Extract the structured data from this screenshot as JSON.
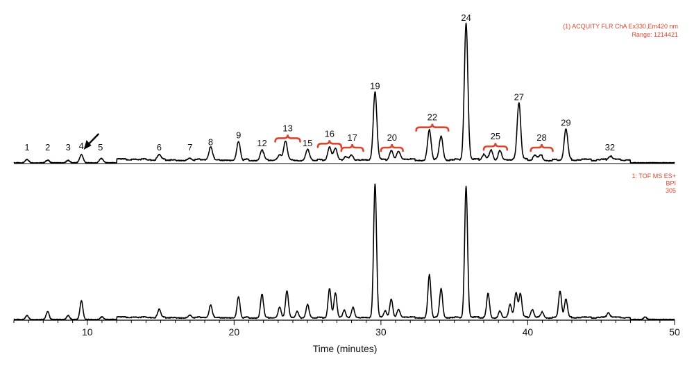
{
  "chart_data": {
    "type": "line",
    "xlabel": "Time (minutes)",
    "xlim": [
      5,
      50
    ],
    "x_ticks": [
      10,
      20,
      30,
      40,
      50
    ],
    "accent_color": "#d9452f",
    "trace_color": "#000000",
    "top_trace": {
      "annotation": [
        "(1) ACQUITY FLR ChA Ex330,Em420 nm",
        "Range: 1214421"
      ],
      "baseline": 0.03,
      "peaks": [
        {
          "label": "1",
          "x": 5.9,
          "y": 0.025
        },
        {
          "label": "2",
          "x": 7.3,
          "y": 0.02
        },
        {
          "label": "3",
          "x": 8.7,
          "y": 0.018
        },
        {
          "label": "4",
          "x": 9.6,
          "y": 0.06
        },
        {
          "label": "5",
          "x": 10.9,
          "y": 0.015
        },
        {
          "label": "6",
          "x": 14.9,
          "y": 0.035
        },
        {
          "label": "7",
          "x": 17.0,
          "y": 0.015
        },
        {
          "label": "8",
          "x": 18.4,
          "y": 0.09
        },
        {
          "label": "9",
          "x": 20.3,
          "y": 0.14
        },
        {
          "label": "12",
          "x": 21.9,
          "y": 0.08
        },
        {
          "label": "13",
          "x": 23.5,
          "y": 0.14
        },
        {
          "label": "15",
          "x": 25.0,
          "y": 0.08
        },
        {
          "label": "16",
          "x": 26.5,
          "y": 0.1
        },
        {
          "label": "17",
          "x": 28.0,
          "y": 0.04
        },
        {
          "label": "19",
          "x": 29.6,
          "y": 0.5
        },
        {
          "label": "20",
          "x": 30.7,
          "y": 0.07
        },
        {
          "label": "22",
          "x": 33.3,
          "y": 0.22
        },
        {
          "label": "24",
          "x": 35.8,
          "y": 1.0
        },
        {
          "label": "25",
          "x": 37.5,
          "y": 0.08
        },
        {
          "label": "27",
          "x": 39.4,
          "y": 0.42
        },
        {
          "label": "28",
          "x": 40.9,
          "y": 0.03
        },
        {
          "label": "29",
          "x": 42.6,
          "y": 0.23
        },
        {
          "label": "32",
          "x": 45.6,
          "y": 0.03
        }
      ],
      "extra_peaks": [
        [
          11.0,
          0.02
        ],
        [
          23.1,
          0.04
        ],
        [
          26.9,
          0.08
        ],
        [
          27.6,
          0.03
        ],
        [
          31.2,
          0.06
        ],
        [
          34.1,
          0.18
        ],
        [
          37.0,
          0.04
        ],
        [
          38.1,
          0.07
        ],
        [
          40.5,
          0.03
        ]
      ],
      "brace_groups": [
        {
          "label": "13",
          "x_start": 22.8,
          "x_end": 24.5
        },
        {
          "label": "16",
          "x_start": 25.7,
          "x_end": 27.3
        },
        {
          "label": "17",
          "x_start": 27.3,
          "x_end": 28.8
        },
        {
          "label": "20",
          "x_start": 30.0,
          "x_end": 31.5
        },
        {
          "label": "22",
          "x_start": 32.4,
          "x_end": 34.6
        },
        {
          "label": "25",
          "x_start": 37.0,
          "x_end": 38.6
        },
        {
          "label": "28",
          "x_start": 40.2,
          "x_end": 41.7
        }
      ]
    },
    "bottom_trace": {
      "annotation": [
        "1: TOF MS ES+",
        "BPI",
        "305"
      ],
      "baseline": 0.02,
      "peaks": [
        [
          5.9,
          0.03
        ],
        [
          7.3,
          0.06
        ],
        [
          8.7,
          0.03
        ],
        [
          9.6,
          0.14
        ],
        [
          11.0,
          0.02
        ],
        [
          14.9,
          0.06
        ],
        [
          17.0,
          0.02
        ],
        [
          18.4,
          0.09
        ],
        [
          20.3,
          0.16
        ],
        [
          21.9,
          0.18
        ],
        [
          23.1,
          0.08
        ],
        [
          23.6,
          0.2
        ],
        [
          24.3,
          0.05
        ],
        [
          25.0,
          0.1
        ],
        [
          26.5,
          0.22
        ],
        [
          26.9,
          0.18
        ],
        [
          27.5,
          0.06
        ],
        [
          28.1,
          0.08
        ],
        [
          29.6,
          1.0
        ],
        [
          30.3,
          0.05
        ],
        [
          30.7,
          0.14
        ],
        [
          31.2,
          0.06
        ],
        [
          33.3,
          0.32
        ],
        [
          34.1,
          0.22
        ],
        [
          35.8,
          0.98
        ],
        [
          37.3,
          0.18
        ],
        [
          38.1,
          0.05
        ],
        [
          38.8,
          0.1
        ],
        [
          39.2,
          0.18
        ],
        [
          39.5,
          0.18
        ],
        [
          40.3,
          0.06
        ],
        [
          41.0,
          0.04
        ],
        [
          42.2,
          0.2
        ],
        [
          42.6,
          0.14
        ],
        [
          45.5,
          0.04
        ],
        [
          48.0,
          0.02
        ]
      ]
    }
  }
}
